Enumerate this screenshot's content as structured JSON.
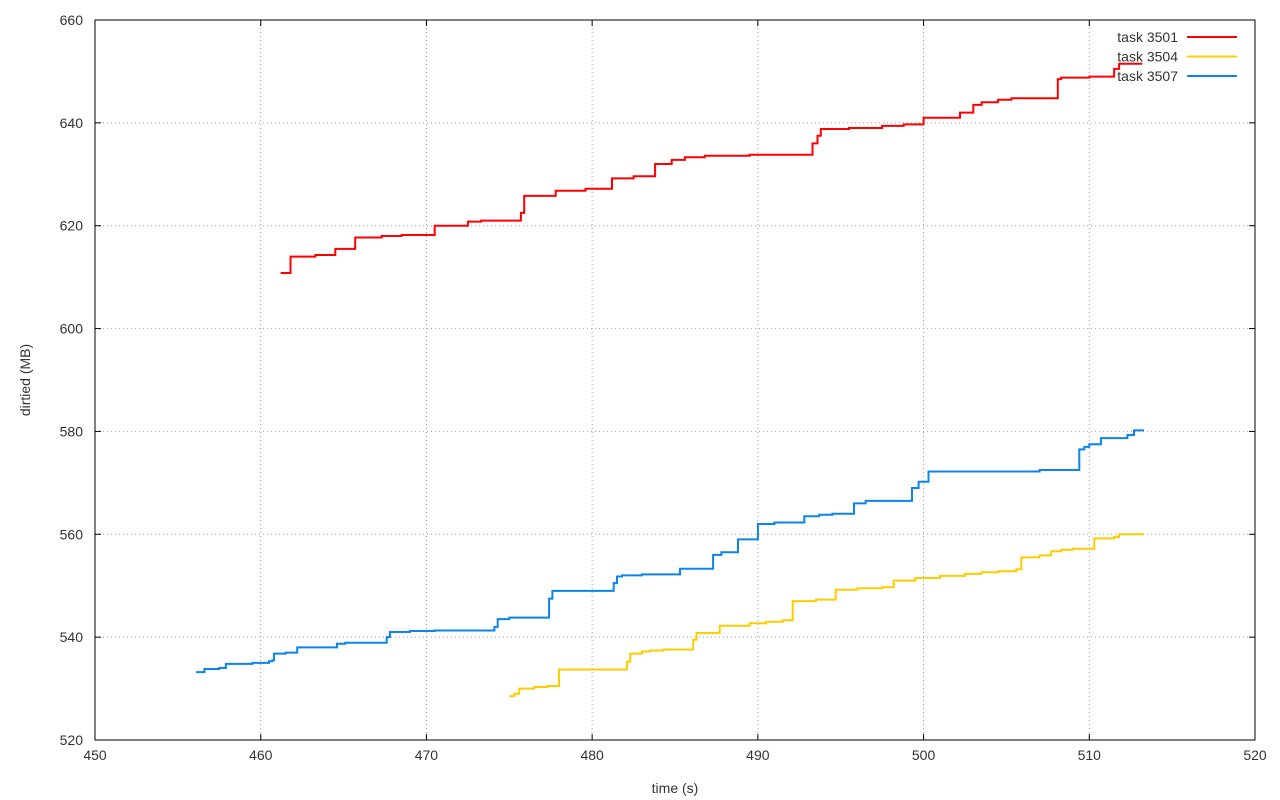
{
  "chart_data": {
    "type": "line",
    "step": true,
    "title": "",
    "xlabel": "time (s)",
    "ylabel": "dirtied (MB)",
    "xlim": [
      450,
      520
    ],
    "ylim": [
      520,
      660
    ],
    "xticks": [
      450,
      460,
      470,
      480,
      490,
      500,
      510,
      520
    ],
    "yticks": [
      520,
      540,
      560,
      580,
      600,
      620,
      640,
      660
    ],
    "grid": true,
    "legend_position": "top-right",
    "series": [
      {
        "name": "task 3501",
        "color": "#ff0000",
        "points": [
          [
            461.2,
            610.8
          ],
          [
            461.8,
            610.8
          ],
          [
            461.8,
            614.0
          ],
          [
            463.3,
            614.0
          ],
          [
            463.3,
            614.3
          ],
          [
            464.5,
            614.3
          ],
          [
            464.5,
            615.5
          ],
          [
            465.7,
            615.5
          ],
          [
            465.7,
            617.7
          ],
          [
            467.3,
            617.7
          ],
          [
            467.3,
            618.0
          ],
          [
            468.5,
            618.0
          ],
          [
            468.5,
            618.2
          ],
          [
            470.5,
            618.2
          ],
          [
            470.5,
            620.0
          ],
          [
            472.5,
            620.0
          ],
          [
            472.5,
            620.8
          ],
          [
            473.3,
            620.8
          ],
          [
            473.3,
            621.0
          ],
          [
            475.7,
            621.0
          ],
          [
            475.7,
            622.5
          ],
          [
            475.9,
            622.5
          ],
          [
            475.9,
            625.8
          ],
          [
            477.8,
            625.8
          ],
          [
            477.8,
            626.8
          ],
          [
            479.6,
            626.8
          ],
          [
            479.6,
            627.2
          ],
          [
            481.2,
            627.2
          ],
          [
            481.2,
            629.2
          ],
          [
            482.5,
            629.2
          ],
          [
            482.5,
            629.6
          ],
          [
            483.8,
            629.6
          ],
          [
            483.8,
            632.0
          ],
          [
            484.8,
            632.0
          ],
          [
            484.8,
            632.8
          ],
          [
            485.6,
            632.8
          ],
          [
            485.6,
            633.3
          ],
          [
            486.8,
            633.3
          ],
          [
            486.8,
            633.6
          ],
          [
            489.5,
            633.6
          ],
          [
            489.5,
            633.8
          ],
          [
            493.3,
            633.8
          ],
          [
            493.3,
            636.0
          ],
          [
            493.6,
            636.0
          ],
          [
            493.6,
            637.5
          ],
          [
            493.8,
            637.5
          ],
          [
            493.8,
            638.8
          ],
          [
            495.5,
            638.8
          ],
          [
            495.5,
            639.0
          ],
          [
            497.5,
            639.0
          ],
          [
            497.5,
            639.4
          ],
          [
            498.8,
            639.4
          ],
          [
            498.8,
            639.7
          ],
          [
            500.0,
            639.7
          ],
          [
            500.0,
            641.0
          ],
          [
            502.2,
            641.0
          ],
          [
            502.2,
            642.0
          ],
          [
            503.0,
            642.0
          ],
          [
            503.0,
            643.5
          ],
          [
            503.5,
            643.5
          ],
          [
            503.5,
            644.0
          ],
          [
            504.5,
            644.0
          ],
          [
            504.5,
            644.5
          ],
          [
            505.3,
            644.5
          ],
          [
            505.3,
            644.8
          ],
          [
            508.1,
            644.8
          ],
          [
            508.1,
            648.5
          ],
          [
            508.3,
            648.5
          ],
          [
            508.3,
            648.8
          ],
          [
            510.0,
            648.8
          ],
          [
            510.0,
            649.0
          ],
          [
            511.5,
            649.0
          ],
          [
            511.5,
            650.5
          ],
          [
            511.8,
            650.5
          ],
          [
            511.8,
            651.5
          ],
          [
            513.2,
            651.5
          ]
        ]
      },
      {
        "name": "task 3504",
        "color": "#ffcc00",
        "points": [
          [
            475.0,
            528.5
          ],
          [
            475.3,
            528.5
          ],
          [
            475.3,
            529.0
          ],
          [
            475.6,
            529.0
          ],
          [
            475.6,
            530.0
          ],
          [
            476.5,
            530.0
          ],
          [
            476.5,
            530.3
          ],
          [
            477.3,
            530.3
          ],
          [
            477.3,
            530.5
          ],
          [
            478.0,
            530.5
          ],
          [
            478.0,
            533.7
          ],
          [
            482.1,
            533.7
          ],
          [
            482.1,
            535.2
          ],
          [
            482.3,
            535.2
          ],
          [
            482.3,
            536.8
          ],
          [
            483.0,
            536.8
          ],
          [
            483.0,
            537.2
          ],
          [
            483.5,
            537.2
          ],
          [
            483.5,
            537.4
          ],
          [
            484.3,
            537.4
          ],
          [
            484.3,
            537.6
          ],
          [
            486.1,
            537.6
          ],
          [
            486.1,
            539.5
          ],
          [
            486.3,
            539.5
          ],
          [
            486.3,
            540.8
          ],
          [
            487.7,
            540.8
          ],
          [
            487.7,
            542.2
          ],
          [
            489.5,
            542.2
          ],
          [
            489.5,
            542.7
          ],
          [
            490.5,
            542.7
          ],
          [
            490.5,
            543.0
          ],
          [
            491.5,
            543.0
          ],
          [
            491.5,
            543.3
          ],
          [
            492.1,
            543.3
          ],
          [
            492.1,
            547.0
          ],
          [
            493.5,
            547.0
          ],
          [
            493.5,
            547.3
          ],
          [
            494.7,
            547.3
          ],
          [
            494.7,
            549.2
          ],
          [
            496.0,
            549.2
          ],
          [
            496.0,
            549.5
          ],
          [
            497.5,
            549.5
          ],
          [
            497.5,
            549.7
          ],
          [
            498.2,
            549.7
          ],
          [
            498.2,
            551.0
          ],
          [
            499.5,
            551.0
          ],
          [
            499.5,
            551.5
          ],
          [
            501.0,
            551.5
          ],
          [
            501.0,
            551.9
          ],
          [
            502.5,
            551.9
          ],
          [
            502.5,
            552.3
          ],
          [
            503.5,
            552.3
          ],
          [
            503.5,
            552.6
          ],
          [
            504.5,
            552.6
          ],
          [
            504.5,
            552.8
          ],
          [
            505.6,
            552.8
          ],
          [
            505.6,
            553.2
          ],
          [
            505.9,
            553.2
          ],
          [
            505.9,
            555.5
          ],
          [
            507.0,
            555.5
          ],
          [
            507.0,
            555.9
          ],
          [
            507.7,
            555.9
          ],
          [
            507.7,
            556.7
          ],
          [
            508.3,
            556.7
          ],
          [
            508.3,
            557.0
          ],
          [
            509.0,
            557.0
          ],
          [
            509.0,
            557.2
          ],
          [
            510.3,
            557.2
          ],
          [
            510.3,
            559.2
          ],
          [
            511.5,
            559.2
          ],
          [
            511.5,
            559.5
          ],
          [
            511.8,
            559.5
          ],
          [
            511.8,
            560.0
          ],
          [
            513.3,
            560.0
          ]
        ]
      },
      {
        "name": "task 3507",
        "color": "#0b84ee",
        "points": [
          [
            456.1,
            533.2
          ],
          [
            456.6,
            533.2
          ],
          [
            456.6,
            533.8
          ],
          [
            457.5,
            533.8
          ],
          [
            457.5,
            534.0
          ],
          [
            457.9,
            534.0
          ],
          [
            457.9,
            534.8
          ],
          [
            459.5,
            534.8
          ],
          [
            459.5,
            535.0
          ],
          [
            460.5,
            535.0
          ],
          [
            460.5,
            535.3
          ],
          [
            460.7,
            535.3
          ],
          [
            460.7,
            535.5
          ],
          [
            460.8,
            535.5
          ],
          [
            460.8,
            536.8
          ],
          [
            461.5,
            536.8
          ],
          [
            461.5,
            537.0
          ],
          [
            462.2,
            537.0
          ],
          [
            462.2,
            538.0
          ],
          [
            464.6,
            538.0
          ],
          [
            464.6,
            538.7
          ],
          [
            465.1,
            538.7
          ],
          [
            465.1,
            538.9
          ],
          [
            467.6,
            538.9
          ],
          [
            467.6,
            540.0
          ],
          [
            467.8,
            540.0
          ],
          [
            467.8,
            541.0
          ],
          [
            469.0,
            541.0
          ],
          [
            469.0,
            541.2
          ],
          [
            470.5,
            541.2
          ],
          [
            470.5,
            541.3
          ],
          [
            474.1,
            541.3
          ],
          [
            474.1,
            542.0
          ],
          [
            474.3,
            542.0
          ],
          [
            474.3,
            543.5
          ],
          [
            475.0,
            543.5
          ],
          [
            475.0,
            543.8
          ],
          [
            477.4,
            543.8
          ],
          [
            477.4,
            547.5
          ],
          [
            477.6,
            547.5
          ],
          [
            477.6,
            549.0
          ],
          [
            481.3,
            549.0
          ],
          [
            481.3,
            550.5
          ],
          [
            481.5,
            550.5
          ],
          [
            481.5,
            551.8
          ],
          [
            481.8,
            551.8
          ],
          [
            481.8,
            552.0
          ],
          [
            483.0,
            552.0
          ],
          [
            483.0,
            552.2
          ],
          [
            485.3,
            552.2
          ],
          [
            485.3,
            553.3
          ],
          [
            487.3,
            553.3
          ],
          [
            487.3,
            556.0
          ],
          [
            487.8,
            556.0
          ],
          [
            487.8,
            556.5
          ],
          [
            488.8,
            556.5
          ],
          [
            488.8,
            559.0
          ],
          [
            490.0,
            559.0
          ],
          [
            490.0,
            562.0
          ],
          [
            491.0,
            562.0
          ],
          [
            491.0,
            562.3
          ],
          [
            492.8,
            562.3
          ],
          [
            492.8,
            563.5
          ],
          [
            493.7,
            563.5
          ],
          [
            493.7,
            563.8
          ],
          [
            494.5,
            563.8
          ],
          [
            494.5,
            564.0
          ],
          [
            495.8,
            564.0
          ],
          [
            495.8,
            566.0
          ],
          [
            496.5,
            566.0
          ],
          [
            496.5,
            566.5
          ],
          [
            499.3,
            566.5
          ],
          [
            499.3,
            569.0
          ],
          [
            499.7,
            569.0
          ],
          [
            499.7,
            570.2
          ],
          [
            500.3,
            570.2
          ],
          [
            500.3,
            572.2
          ],
          [
            507.0,
            572.2
          ],
          [
            507.0,
            572.5
          ],
          [
            509.4,
            572.5
          ],
          [
            509.4,
            576.5
          ],
          [
            509.7,
            576.5
          ],
          [
            509.7,
            577.0
          ],
          [
            510.0,
            577.0
          ],
          [
            510.0,
            577.5
          ],
          [
            510.7,
            577.5
          ],
          [
            510.7,
            578.7
          ],
          [
            512.3,
            578.7
          ],
          [
            512.3,
            579.3
          ],
          [
            512.7,
            579.3
          ],
          [
            512.7,
            580.2
          ],
          [
            513.3,
            580.2
          ]
        ]
      }
    ]
  }
}
